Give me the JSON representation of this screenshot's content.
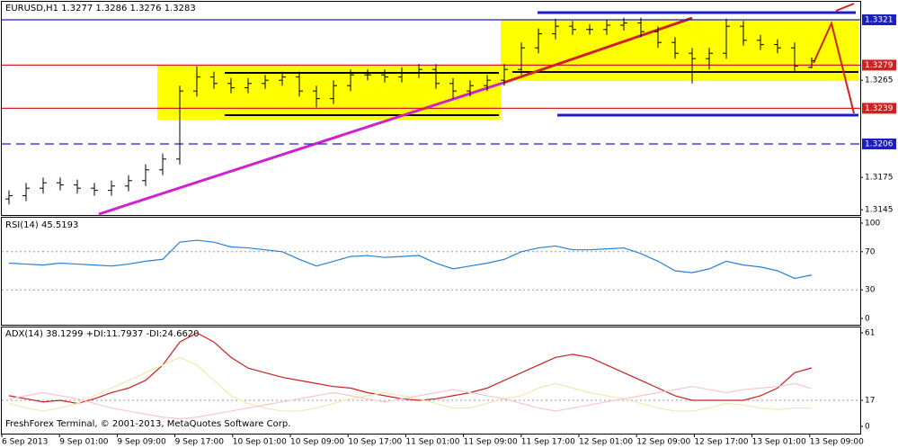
{
  "chart_data": [
    {
      "type": "ohlc",
      "title": "EURUSD,H1  1.3277 1.3286 1.3276 1.3283",
      "color": "#000000",
      "open": [
        1.3155,
        1.3158,
        1.3165,
        1.317,
        1.3168,
        1.3165,
        1.3163,
        1.3167,
        1.3172,
        1.3182,
        1.3192,
        1.3255,
        1.3268,
        1.3262,
        1.3258,
        1.3262,
        1.3265,
        1.3268,
        1.3255,
        1.3248,
        1.326,
        1.327,
        1.327,
        1.3268,
        1.3272,
        1.3275,
        1.3262,
        1.3255,
        1.326,
        1.3265,
        1.3275,
        1.3295,
        1.3308,
        1.3315,
        1.3312,
        1.3312,
        1.3316,
        1.3318,
        1.331,
        1.33,
        1.329,
        1.3285,
        1.329,
        1.3315,
        1.3302,
        1.3298,
        1.3295,
        1.3277
      ],
      "high": [
        1.3163,
        1.317,
        1.3175,
        1.3175,
        1.3173,
        1.317,
        1.3172,
        1.3177,
        1.3187,
        1.3197,
        1.326,
        1.3278,
        1.3273,
        1.3267,
        1.3267,
        1.327,
        1.3273,
        1.3273,
        1.326,
        1.3265,
        1.3275,
        1.3275,
        1.3275,
        1.3277,
        1.328,
        1.328,
        1.3267,
        1.3265,
        1.327,
        1.328,
        1.33,
        1.3313,
        1.3322,
        1.332,
        1.3317,
        1.3321,
        1.3323,
        1.3323,
        1.3315,
        1.3305,
        1.3295,
        1.3295,
        1.3322,
        1.332,
        1.3307,
        1.3303,
        1.33,
        1.3286
      ],
      "low": [
        1.315,
        1.3153,
        1.316,
        1.3163,
        1.316,
        1.3158,
        1.3158,
        1.3162,
        1.3167,
        1.3177,
        1.3187,
        1.325,
        1.3257,
        1.3253,
        1.3253,
        1.3257,
        1.326,
        1.325,
        1.324,
        1.3243,
        1.3255,
        1.3265,
        1.3263,
        1.3263,
        1.3267,
        1.3257,
        1.3248,
        1.325,
        1.3255,
        1.326,
        1.327,
        1.329,
        1.3303,
        1.3307,
        1.3307,
        1.3307,
        1.3311,
        1.3305,
        1.3295,
        1.3285,
        1.3262,
        1.3275,
        1.3285,
        1.3297,
        1.3293,
        1.329,
        1.3273,
        1.3276
      ],
      "close": [
        1.3158,
        1.3165,
        1.317,
        1.3168,
        1.3165,
        1.3163,
        1.3167,
        1.3172,
        1.3182,
        1.3192,
        1.3255,
        1.3268,
        1.3262,
        1.3258,
        1.3262,
        1.3265,
        1.3268,
        1.3255,
        1.3248,
        1.326,
        1.327,
        1.327,
        1.3268,
        1.3272,
        1.3275,
        1.3262,
        1.3255,
        1.326,
        1.3265,
        1.3275,
        1.3295,
        1.3308,
        1.3315,
        1.3312,
        1.3312,
        1.3316,
        1.3318,
        1.331,
        1.33,
        1.329,
        1.3285,
        1.329,
        1.3315,
        1.3302,
        1.3298,
        1.3295,
        1.3278,
        1.3283
      ],
      "ylim": [
        1.3141,
        1.3336
      ],
      "yticks": [
        1.3265,
        1.3175,
        1.3145
      ],
      "levels": [
        {
          "value": 1.3321,
          "color": "#1c1cc8",
          "dash": false
        },
        {
          "value": 1.3279,
          "color": "#d02020",
          "dash": false
        },
        {
          "value": 1.3239,
          "color": "#d02020",
          "dash": false
        },
        {
          "value": 1.3206,
          "color": "#1c1cc8",
          "dash": true
        }
      ]
    },
    {
      "type": "line",
      "title": "RSI(14) 45.5193",
      "series": [
        {
          "name": "RSI(14)",
          "color": "#2a7fd4",
          "values": [
            58,
            57,
            56,
            58,
            57,
            56,
            55,
            57,
            60,
            62,
            80,
            82,
            80,
            75,
            74,
            72,
            70,
            62,
            55,
            60,
            65,
            66,
            64,
            65,
            66,
            58,
            52,
            55,
            58,
            62,
            70,
            74,
            76,
            72,
            72,
            73,
            74,
            68,
            60,
            50,
            48,
            52,
            60,
            56,
            54,
            50,
            42,
            45.5193
          ]
        }
      ],
      "ylim": [
        0,
        100
      ],
      "yticks": [
        100,
        70,
        30,
        0
      ],
      "levels": [
        70,
        30
      ]
    },
    {
      "type": "line",
      "title": "ADX(14) 38.1299 +DI:11.7937 -DI:24.6620",
      "series": [
        {
          "name": "ADX(14)",
          "color": "#c82020",
          "values": [
            20,
            18,
            16,
            17,
            15,
            18,
            22,
            25,
            30,
            40,
            55,
            61,
            55,
            45,
            38,
            35,
            32,
            30,
            28,
            26,
            25,
            22,
            20,
            18,
            17,
            18,
            20,
            22,
            25,
            30,
            35,
            40,
            45,
            47,
            45,
            40,
            35,
            30,
            25,
            20,
            17,
            17,
            17,
            17,
            20,
            25,
            35,
            38.1299
          ]
        },
        {
          "name": "+DI",
          "color": "#f3e7b0",
          "values": [
            15,
            12,
            10,
            12,
            15,
            20,
            25,
            30,
            35,
            40,
            45,
            40,
            30,
            20,
            15,
            12,
            10,
            10,
            12,
            15,
            18,
            20,
            22,
            20,
            18,
            15,
            12,
            12,
            15,
            18,
            20,
            25,
            28,
            25,
            22,
            20,
            18,
            15,
            12,
            10,
            10,
            12,
            15,
            14,
            12,
            11,
            12,
            11.7937
          ]
        },
        {
          "name": "-DI",
          "color": "#f2c9c9",
          "values": [
            18,
            20,
            22,
            20,
            18,
            15,
            12,
            10,
            8,
            6,
            5,
            6,
            8,
            10,
            12,
            14,
            16,
            18,
            20,
            22,
            20,
            18,
            16,
            18,
            20,
            22,
            24,
            22,
            20,
            18,
            15,
            12,
            10,
            12,
            14,
            16,
            18,
            20,
            22,
            24,
            26,
            24,
            22,
            24,
            25,
            26,
            28,
            24.662
          ]
        }
      ],
      "ylim": [
        0,
        61
      ],
      "yticks": [
        61,
        17,
        0
      ],
      "levels": [
        17
      ],
      "xtick_labels": [
        "6 Sep 2013",
        "9 Sep 01:00",
        "9 Sep 09:00",
        "9 Sep 17:00",
        "10 Sep 01:00",
        "10 Sep 09:00",
        "10 Sep 17:00",
        "11 Sep 01:00",
        "11 Sep 09:00",
        "11 Sep 17:00",
        "12 Sep 01:00",
        "12 Sep 09:00",
        "12 Sep 17:00",
        "13 Sep 01:00",
        "13 Sep 09:00"
      ],
      "footer": "FreshForex Terminal, © 2001-2013, MetaQuotes Software Corp."
    }
  ]
}
